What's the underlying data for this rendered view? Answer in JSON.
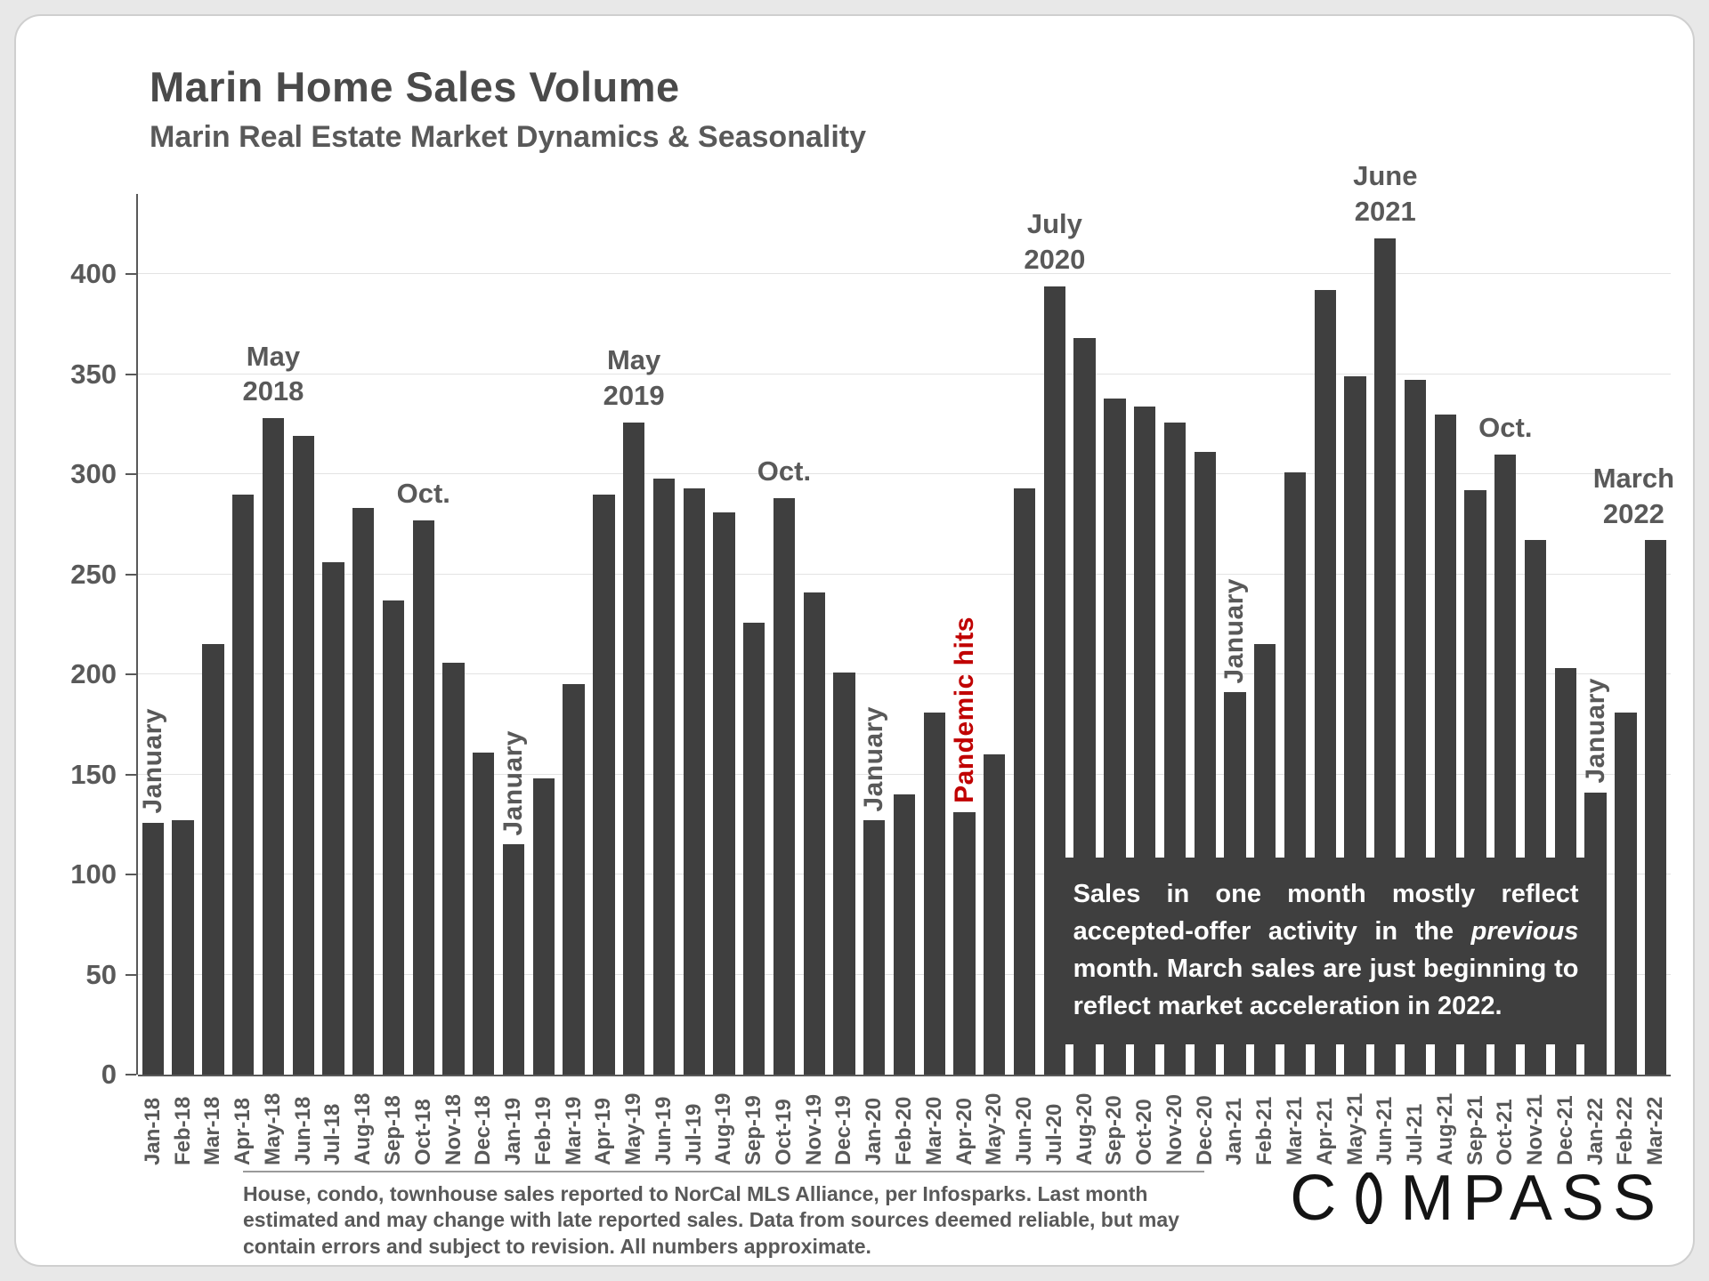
{
  "page": {
    "title": "Marin Home Sales Volume",
    "subtitle": "Marin Real Estate Market Dynamics & Seasonality"
  },
  "chart_data": {
    "type": "bar",
    "title": "Marin Home Sales Volume",
    "subtitle": "Marin Real Estate Market Dynamics & Seasonality",
    "bar_color": "#3f3f3f",
    "grid": "horizontal, faint",
    "legend": "none",
    "ylim": [
      0,
      440
    ],
    "yticks": [
      0,
      50,
      100,
      150,
      200,
      250,
      300,
      350,
      400
    ],
    "xlabel": "",
    "ylabel": "",
    "categories": [
      "Jan-18",
      "Feb-18",
      "Mar-18",
      "Apr-18",
      "May-18",
      "Jun-18",
      "Jul-18",
      "Aug-18",
      "Sep-18",
      "Oct-18",
      "Nov-18",
      "Dec-18",
      "Jan-19",
      "Feb-19",
      "Mar-19",
      "Apr-19",
      "May-19",
      "Jun-19",
      "Jul-19",
      "Aug-19",
      "Sep-19",
      "Oct-19",
      "Nov-19",
      "Dec-19",
      "Jan-20",
      "Feb-20",
      "Mar-20",
      "Apr-20",
      "May-20",
      "Jun-20",
      "Jul-20",
      "Aug-20",
      "Sep-20",
      "Oct-20",
      "Nov-20",
      "Dec-20",
      "Jan-21",
      "Feb-21",
      "Mar-21",
      "Apr-21",
      "May-21",
      "Jun-21",
      "Jul-21",
      "Aug-21",
      "Sep-21",
      "Oct-21",
      "Nov-21",
      "Dec-21",
      "Jan-22",
      "Feb-22",
      "Mar-22"
    ],
    "values": [
      126,
      127,
      215,
      290,
      328,
      319,
      256,
      283,
      237,
      277,
      206,
      161,
      115,
      148,
      195,
      290,
      326,
      298,
      293,
      281,
      226,
      288,
      241,
      201,
      127,
      140,
      181,
      131,
      160,
      293,
      394,
      368,
      338,
      334,
      326,
      311,
      191,
      215,
      301,
      392,
      349,
      418,
      347,
      330,
      292,
      310,
      267,
      203,
      141,
      181,
      267
    ],
    "annotations": [
      {
        "index": 0,
        "lines": [
          "January"
        ],
        "orientation": "vertical",
        "color": "#595959"
      },
      {
        "index": 4,
        "lines": [
          "May",
          "2018"
        ],
        "orientation": "horizontal",
        "color": "#595959"
      },
      {
        "index": 9,
        "lines": [
          "Oct."
        ],
        "orientation": "horizontal",
        "color": "#595959"
      },
      {
        "index": 12,
        "lines": [
          "January"
        ],
        "orientation": "vertical",
        "color": "#595959"
      },
      {
        "index": 16,
        "lines": [
          "May",
          "2019"
        ],
        "orientation": "horizontal",
        "color": "#595959"
      },
      {
        "index": 21,
        "lines": [
          "Oct."
        ],
        "orientation": "horizontal",
        "color": "#595959"
      },
      {
        "index": 24,
        "lines": [
          "January"
        ],
        "orientation": "vertical",
        "color": "#595959"
      },
      {
        "index": 27,
        "lines": [
          "Pandemic hits"
        ],
        "orientation": "vertical",
        "color": "#c00000"
      },
      {
        "index": 30,
        "lines": [
          "July",
          "2020"
        ],
        "orientation": "horizontal",
        "color": "#595959"
      },
      {
        "index": 36,
        "lines": [
          "January"
        ],
        "orientation": "vertical",
        "color": "#595959"
      },
      {
        "index": 41,
        "lines": [
          "June",
          "2021"
        ],
        "orientation": "horizontal",
        "color": "#595959"
      },
      {
        "index": 45,
        "lines": [
          "Oct."
        ],
        "orientation": "horizontal",
        "color": "#595959"
      },
      {
        "index": 48,
        "lines": [
          "January"
        ],
        "orientation": "vertical",
        "color": "#595959"
      },
      {
        "index": 50,
        "lines": [
          "March",
          "2022"
        ],
        "orientation": "horizontal",
        "color": "#595959",
        "align": "right"
      }
    ]
  },
  "overlay_note": {
    "bg": "#3f3f3f",
    "text_before": "Sales in one month mostly reflect accepted-offer activity in the ",
    "italic": "previous",
    "text_after": " month. March sales are just beginning to reflect market acceleration in 2022."
  },
  "footer": {
    "disclaimer": "House, condo, townhouse sales reported to NorCal MLS Alliance, per Infosparks. Last month estimated and may change with late reported sales. Data from sources deemed reliable, but may contain errors and subject to revision. All numbers approximate.",
    "logo_c": "C",
    "logo_rest": "MPASS"
  }
}
